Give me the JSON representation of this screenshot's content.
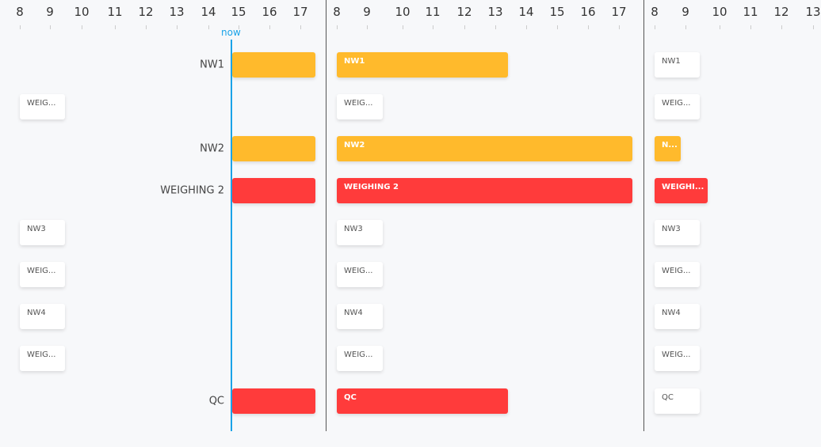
{
  "colors": {
    "amber": "#FFBA2C",
    "red": "#FF3B3B",
    "now": "#1aa3e8"
  },
  "now_label": "now",
  "panels": [
    {
      "ticks": [
        "8",
        "9",
        "10",
        "11",
        "12",
        "13",
        "14",
        "15",
        "16",
        "17"
      ],
      "row_labels": [
        "NW1",
        "",
        "NW2",
        "WEIGHING 2",
        "",
        "",
        "",
        "",
        "QC"
      ],
      "items": [
        {
          "row": 0,
          "label": "",
          "style": "amber"
        },
        {
          "row": 1,
          "label": "WEIG...",
          "style": "card"
        },
        {
          "row": 2,
          "label": "",
          "style": "amber"
        },
        {
          "row": 3,
          "label": "",
          "style": "red"
        },
        {
          "row": 4,
          "label": "NW3",
          "style": "card"
        },
        {
          "row": 5,
          "label": "WEIG...",
          "style": "card"
        },
        {
          "row": 6,
          "label": "NW4",
          "style": "card"
        },
        {
          "row": 7,
          "label": "WEIG...",
          "style": "card"
        },
        {
          "row": 8,
          "label": "",
          "style": "red"
        }
      ]
    },
    {
      "ticks": [
        "8",
        "9",
        "10",
        "11",
        "12",
        "13",
        "14",
        "15",
        "16",
        "17"
      ],
      "items": [
        {
          "row": 0,
          "label": "NW1",
          "style": "amber"
        },
        {
          "row": 1,
          "label": "WEIG...",
          "style": "card"
        },
        {
          "row": 2,
          "label": "NW2",
          "style": "amber"
        },
        {
          "row": 3,
          "label": "WEIGHING 2",
          "style": "red"
        },
        {
          "row": 4,
          "label": "NW3",
          "style": "card"
        },
        {
          "row": 5,
          "label": "WEIG...",
          "style": "card"
        },
        {
          "row": 6,
          "label": "NW4",
          "style": "card"
        },
        {
          "row": 7,
          "label": "WEIG...",
          "style": "card"
        },
        {
          "row": 8,
          "label": "QC",
          "style": "red"
        }
      ]
    },
    {
      "ticks": [
        "8",
        "9",
        "10",
        "11",
        "12",
        "13"
      ],
      "items": [
        {
          "row": 0,
          "label": "NW1",
          "style": "card"
        },
        {
          "row": 1,
          "label": "WEIG...",
          "style": "card"
        },
        {
          "row": 2,
          "label": "N...",
          "style": "amber"
        },
        {
          "row": 3,
          "label": "WEIGHI...",
          "style": "red"
        },
        {
          "row": 4,
          "label": "NW3",
          "style": "card"
        },
        {
          "row": 5,
          "label": "WEIG...",
          "style": "card"
        },
        {
          "row": 6,
          "label": "NW4",
          "style": "card"
        },
        {
          "row": 7,
          "label": "WEIG...",
          "style": "card"
        },
        {
          "row": 8,
          "label": "QC",
          "style": "card"
        }
      ]
    }
  ]
}
